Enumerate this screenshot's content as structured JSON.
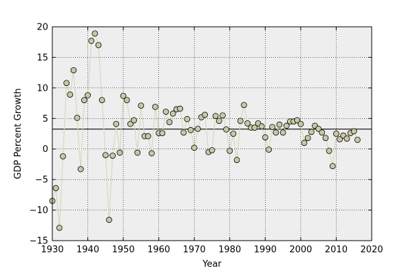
{
  "chart_data": {
    "type": "scatter",
    "title": "",
    "xlabel": "Year",
    "ylabel": "GDP Percent Growth",
    "xlim": [
      1930,
      2020
    ],
    "ylim": [
      -15,
      20
    ],
    "xticks": [
      1930,
      1940,
      1950,
      1960,
      1970,
      1980,
      1990,
      2000,
      2010,
      2020
    ],
    "yticks": [
      -15,
      -10,
      -5,
      0,
      5,
      10,
      15,
      20
    ],
    "xtick_labels": [
      "1930",
      "1940",
      "1950",
      "1960",
      "1970",
      "1980",
      "1990",
      "2000",
      "2010",
      "2020"
    ],
    "ytick_labels": [
      "−15",
      "−10",
      "−5",
      "0",
      "5",
      "10",
      "15",
      "20"
    ],
    "grid": true,
    "grid_style": "dotted",
    "reference_line_y": 3.25,
    "colors": {
      "plot_background": "#eeeeee",
      "marker_fill": "#c8c8a8",
      "marker_edge": "#000000",
      "connecting_line": "#d8d8c0",
      "reference_line": "#000000"
    },
    "x": [
      1930,
      1931,
      1932,
      1933,
      1934,
      1935,
      1936,
      1937,
      1938,
      1939,
      1940,
      1941,
      1942,
      1943,
      1944,
      1945,
      1946,
      1947,
      1948,
      1949,
      1950,
      1951,
      1952,
      1953,
      1954,
      1955,
      1956,
      1957,
      1958,
      1959,
      1960,
      1961,
      1962,
      1963,
      1964,
      1965,
      1966,
      1967,
      1968,
      1969,
      1970,
      1971,
      1972,
      1973,
      1974,
      1975,
      1976,
      1977,
      1978,
      1979,
      1980,
      1981,
      1982,
      1983,
      1984,
      1985,
      1986,
      1987,
      1988,
      1989,
      1990,
      1991,
      1992,
      1993,
      1994,
      1995,
      1996,
      1997,
      1998,
      1999,
      2000,
      2001,
      2002,
      2003,
      2004,
      2005,
      2006,
      2007,
      2008,
      2009,
      2010,
      2011,
      2012,
      2013,
      2014,
      2015,
      2016
    ],
    "y": [
      -8.5,
      -6.4,
      -12.9,
      -1.2,
      10.8,
      8.9,
      12.9,
      5.1,
      -3.3,
      8.0,
      8.8,
      17.7,
      18.9,
      17.0,
      8.0,
      -1.0,
      -11.6,
      -1.1,
      4.1,
      -0.6,
      8.7,
      8.0,
      4.1,
      4.7,
      -0.6,
      7.1,
      2.1,
      2.1,
      -0.7,
      6.9,
      2.6,
      2.6,
      6.1,
      4.4,
      5.8,
      6.5,
      6.6,
      2.7,
      4.9,
      3.1,
      0.2,
      3.3,
      5.2,
      5.6,
      -0.5,
      -0.2,
      5.4,
      4.6,
      5.5,
      3.2,
      -0.3,
      2.5,
      -1.8,
      4.6,
      7.2,
      4.2,
      3.5,
      3.5,
      4.2,
      3.7,
      1.9,
      -0.1,
      3.6,
      2.7,
      4.0,
      2.7,
      3.8,
      4.5,
      4.5,
      4.7,
      4.1,
      1.0,
      1.8,
      2.8,
      3.8,
      3.3,
      2.7,
      1.8,
      -0.3,
      -2.8,
      2.5,
      1.6,
      2.2,
      1.7,
      2.6,
      2.9,
      1.5
    ]
  }
}
